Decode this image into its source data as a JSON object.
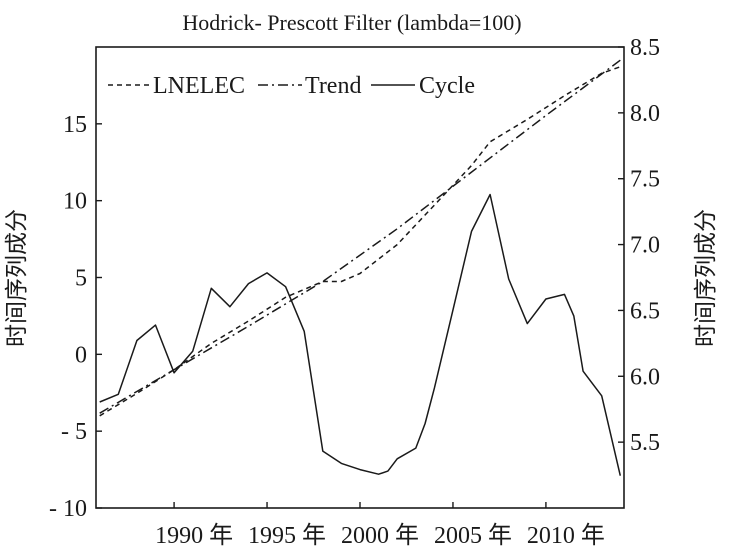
{
  "chart_data": {
    "type": "line",
    "title": "Hodrick- Prescott Filter (lambda=100)",
    "xlabel": "",
    "ylabel_left": "时间序列成分",
    "ylabel_right": "时间序列成分",
    "x_ticks": [
      "1990 年",
      "1995 年",
      "2000 年",
      "2005 年",
      "2010 年"
    ],
    "x_tick_values": [
      1990,
      1995,
      2000,
      2005,
      2010
    ],
    "xlim": [
      1985.8,
      2014.2
    ],
    "left_axis": {
      "ylim": [
        -10,
        20
      ],
      "ticks": [
        15,
        10,
        5,
        0,
        -5,
        -10
      ],
      "tick_labels": [
        "15",
        "10",
        "5",
        "0",
        "- 5",
        "- 10"
      ]
    },
    "right_axis": {
      "ylim": [
        5.0,
        8.5
      ],
      "ticks": [
        8.5,
        8.0,
        7.5,
        7.0,
        6.5,
        6.0,
        5.5
      ],
      "tick_labels": [
        "8.5",
        "8.0",
        "7.5",
        "7.0",
        "6.5",
        "6.0",
        "5.5"
      ]
    },
    "grid": false,
    "legend_position": "top-left",
    "series": [
      {
        "name": "LNELEC",
        "axis": "right",
        "style": "dashed",
        "x": [
          1986,
          1988,
          1990,
          1992,
          1994,
          1996,
          1998,
          1999,
          2000,
          2002,
          2004,
          2006,
          2007,
          2009,
          2011,
          2013,
          2014
        ],
        "values": [
          5.7,
          5.87,
          6.05,
          6.25,
          6.42,
          6.6,
          6.72,
          6.72,
          6.78,
          7.0,
          7.3,
          7.6,
          7.78,
          7.95,
          8.13,
          8.3,
          8.35
        ]
      },
      {
        "name": "Trend",
        "axis": "right",
        "style": "dash-dot",
        "x": [
          1986,
          1990,
          1994,
          1998,
          2002,
          2006,
          2010,
          2014
        ],
        "values": [
          5.72,
          6.05,
          6.38,
          6.72,
          7.12,
          7.55,
          7.98,
          8.4
        ]
      },
      {
        "name": "Cycle",
        "axis": "left",
        "style": "solid",
        "x": [
          1986,
          1987,
          1988,
          1989,
          1990,
          1991,
          1992,
          1993,
          1994,
          1995,
          1996,
          1997,
          1998,
          1999,
          2000,
          2001,
          2001.5,
          2002,
          2003,
          2003.5,
          2004,
          2005,
          2006,
          2007,
          2008,
          2009,
          2010,
          2011,
          2011.5,
          2012,
          2013,
          2014
        ],
        "values": [
          -3.1,
          -2.6,
          0.9,
          1.9,
          -1.2,
          0.2,
          4.3,
          3.1,
          4.6,
          5.3,
          4.4,
          1.5,
          -6.3,
          -7.1,
          -7.5,
          -7.8,
          -7.6,
          -6.8,
          -6.1,
          -4.5,
          -2.2,
          2.9,
          8.0,
          10.4,
          4.9,
          2.0,
          3.6,
          3.9,
          2.5,
          -1.1,
          -2.7,
          -7.9
        ]
      }
    ]
  }
}
